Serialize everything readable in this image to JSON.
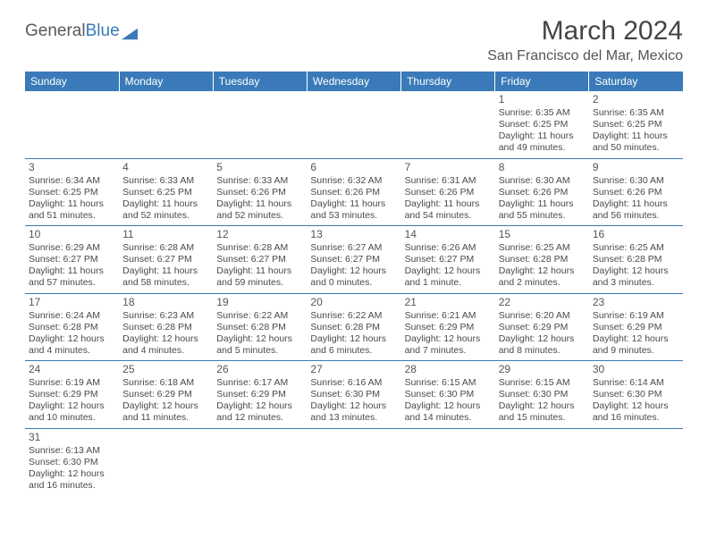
{
  "logo": {
    "text1": "General",
    "text2": "Blue"
  },
  "title": "March 2024",
  "location": "San Francisco del Mar, Mexico",
  "colors": {
    "header_bg": "#3a7ab8",
    "header_text": "#ffffff",
    "cell_border": "#3a7ab8",
    "body_text": "#4a4a4a",
    "logo_gray": "#5a5a5a",
    "logo_blue": "#3a7ab8"
  },
  "weekdays": [
    "Sunday",
    "Monday",
    "Tuesday",
    "Wednesday",
    "Thursday",
    "Friday",
    "Saturday"
  ],
  "weeks": [
    [
      null,
      null,
      null,
      null,
      null,
      {
        "n": "1",
        "sr": "Sunrise: 6:35 AM",
        "ss": "Sunset: 6:25 PM",
        "d1": "Daylight: 11 hours",
        "d2": "and 49 minutes."
      },
      {
        "n": "2",
        "sr": "Sunrise: 6:35 AM",
        "ss": "Sunset: 6:25 PM",
        "d1": "Daylight: 11 hours",
        "d2": "and 50 minutes."
      }
    ],
    [
      {
        "n": "3",
        "sr": "Sunrise: 6:34 AM",
        "ss": "Sunset: 6:25 PM",
        "d1": "Daylight: 11 hours",
        "d2": "and 51 minutes."
      },
      {
        "n": "4",
        "sr": "Sunrise: 6:33 AM",
        "ss": "Sunset: 6:25 PM",
        "d1": "Daylight: 11 hours",
        "d2": "and 52 minutes."
      },
      {
        "n": "5",
        "sr": "Sunrise: 6:33 AM",
        "ss": "Sunset: 6:26 PM",
        "d1": "Daylight: 11 hours",
        "d2": "and 52 minutes."
      },
      {
        "n": "6",
        "sr": "Sunrise: 6:32 AM",
        "ss": "Sunset: 6:26 PM",
        "d1": "Daylight: 11 hours",
        "d2": "and 53 minutes."
      },
      {
        "n": "7",
        "sr": "Sunrise: 6:31 AM",
        "ss": "Sunset: 6:26 PM",
        "d1": "Daylight: 11 hours",
        "d2": "and 54 minutes."
      },
      {
        "n": "8",
        "sr": "Sunrise: 6:30 AM",
        "ss": "Sunset: 6:26 PM",
        "d1": "Daylight: 11 hours",
        "d2": "and 55 minutes."
      },
      {
        "n": "9",
        "sr": "Sunrise: 6:30 AM",
        "ss": "Sunset: 6:26 PM",
        "d1": "Daylight: 11 hours",
        "d2": "and 56 minutes."
      }
    ],
    [
      {
        "n": "10",
        "sr": "Sunrise: 6:29 AM",
        "ss": "Sunset: 6:27 PM",
        "d1": "Daylight: 11 hours",
        "d2": "and 57 minutes."
      },
      {
        "n": "11",
        "sr": "Sunrise: 6:28 AM",
        "ss": "Sunset: 6:27 PM",
        "d1": "Daylight: 11 hours",
        "d2": "and 58 minutes."
      },
      {
        "n": "12",
        "sr": "Sunrise: 6:28 AM",
        "ss": "Sunset: 6:27 PM",
        "d1": "Daylight: 11 hours",
        "d2": "and 59 minutes."
      },
      {
        "n": "13",
        "sr": "Sunrise: 6:27 AM",
        "ss": "Sunset: 6:27 PM",
        "d1": "Daylight: 12 hours",
        "d2": "and 0 minutes."
      },
      {
        "n": "14",
        "sr": "Sunrise: 6:26 AM",
        "ss": "Sunset: 6:27 PM",
        "d1": "Daylight: 12 hours",
        "d2": "and 1 minute."
      },
      {
        "n": "15",
        "sr": "Sunrise: 6:25 AM",
        "ss": "Sunset: 6:28 PM",
        "d1": "Daylight: 12 hours",
        "d2": "and 2 minutes."
      },
      {
        "n": "16",
        "sr": "Sunrise: 6:25 AM",
        "ss": "Sunset: 6:28 PM",
        "d1": "Daylight: 12 hours",
        "d2": "and 3 minutes."
      }
    ],
    [
      {
        "n": "17",
        "sr": "Sunrise: 6:24 AM",
        "ss": "Sunset: 6:28 PM",
        "d1": "Daylight: 12 hours",
        "d2": "and 4 minutes."
      },
      {
        "n": "18",
        "sr": "Sunrise: 6:23 AM",
        "ss": "Sunset: 6:28 PM",
        "d1": "Daylight: 12 hours",
        "d2": "and 4 minutes."
      },
      {
        "n": "19",
        "sr": "Sunrise: 6:22 AM",
        "ss": "Sunset: 6:28 PM",
        "d1": "Daylight: 12 hours",
        "d2": "and 5 minutes."
      },
      {
        "n": "20",
        "sr": "Sunrise: 6:22 AM",
        "ss": "Sunset: 6:28 PM",
        "d1": "Daylight: 12 hours",
        "d2": "and 6 minutes."
      },
      {
        "n": "21",
        "sr": "Sunrise: 6:21 AM",
        "ss": "Sunset: 6:29 PM",
        "d1": "Daylight: 12 hours",
        "d2": "and 7 minutes."
      },
      {
        "n": "22",
        "sr": "Sunrise: 6:20 AM",
        "ss": "Sunset: 6:29 PM",
        "d1": "Daylight: 12 hours",
        "d2": "and 8 minutes."
      },
      {
        "n": "23",
        "sr": "Sunrise: 6:19 AM",
        "ss": "Sunset: 6:29 PM",
        "d1": "Daylight: 12 hours",
        "d2": "and 9 minutes."
      }
    ],
    [
      {
        "n": "24",
        "sr": "Sunrise: 6:19 AM",
        "ss": "Sunset: 6:29 PM",
        "d1": "Daylight: 12 hours",
        "d2": "and 10 minutes."
      },
      {
        "n": "25",
        "sr": "Sunrise: 6:18 AM",
        "ss": "Sunset: 6:29 PM",
        "d1": "Daylight: 12 hours",
        "d2": "and 11 minutes."
      },
      {
        "n": "26",
        "sr": "Sunrise: 6:17 AM",
        "ss": "Sunset: 6:29 PM",
        "d1": "Daylight: 12 hours",
        "d2": "and 12 minutes."
      },
      {
        "n": "27",
        "sr": "Sunrise: 6:16 AM",
        "ss": "Sunset: 6:30 PM",
        "d1": "Daylight: 12 hours",
        "d2": "and 13 minutes."
      },
      {
        "n": "28",
        "sr": "Sunrise: 6:15 AM",
        "ss": "Sunset: 6:30 PM",
        "d1": "Daylight: 12 hours",
        "d2": "and 14 minutes."
      },
      {
        "n": "29",
        "sr": "Sunrise: 6:15 AM",
        "ss": "Sunset: 6:30 PM",
        "d1": "Daylight: 12 hours",
        "d2": "and 15 minutes."
      },
      {
        "n": "30",
        "sr": "Sunrise: 6:14 AM",
        "ss": "Sunset: 6:30 PM",
        "d1": "Daylight: 12 hours",
        "d2": "and 16 minutes."
      }
    ],
    [
      {
        "n": "31",
        "sr": "Sunrise: 6:13 AM",
        "ss": "Sunset: 6:30 PM",
        "d1": "Daylight: 12 hours",
        "d2": "and 16 minutes."
      },
      null,
      null,
      null,
      null,
      null,
      null
    ]
  ]
}
